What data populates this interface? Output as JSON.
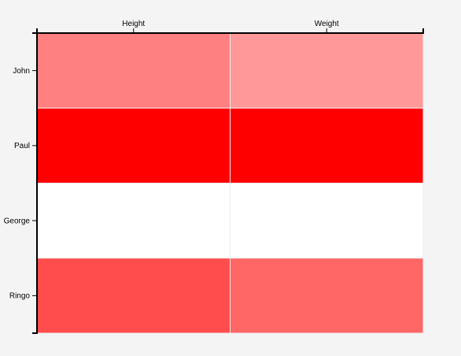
{
  "chart_data": {
    "type": "heatmap",
    "title": "",
    "xlabel": "",
    "ylabel": "",
    "columns": [
      "Height",
      "Weight"
    ],
    "rows": [
      "John",
      "Paul",
      "George",
      "Ringo"
    ],
    "values": [
      [
        0.5,
        0.4
      ],
      [
        1.0,
        1.0
      ],
      [
        0.0,
        0.0
      ],
      [
        0.7,
        0.6
      ]
    ],
    "color_scale": {
      "min_color": "#ffffff",
      "max_color": "#ff0000",
      "domain": [
        0,
        1
      ]
    },
    "x_axis_position": "top",
    "y_axis_position": "left",
    "grid": false,
    "legend": "none"
  }
}
